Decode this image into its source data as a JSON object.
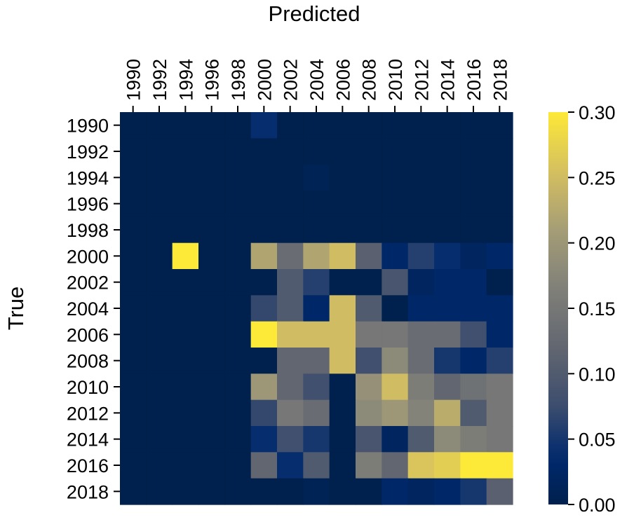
{
  "chart_data": {
    "type": "heatmap",
    "title": "Predicted",
    "xlabel": "Predicted",
    "ylabel": "True",
    "x_categories": [
      "1990",
      "1992",
      "1994",
      "1996",
      "1998",
      "2000",
      "2002",
      "2004",
      "2006",
      "2008",
      "2010",
      "2012",
      "2014",
      "2016",
      "2018"
    ],
    "y_categories": [
      "1990",
      "1992",
      "1994",
      "1996",
      "1998",
      "2000",
      "2002",
      "2004",
      "2006",
      "2008",
      "2010",
      "2012",
      "2014",
      "2016",
      "2018"
    ],
    "values": [
      [
        0.0,
        0.0,
        0.0,
        0.0,
        0.0,
        0.04,
        0.0,
        0.0,
        0.0,
        0.0,
        0.0,
        0.0,
        0.0,
        0.0,
        0.0
      ],
      [
        0.0,
        0.0,
        0.0,
        0.0,
        0.0,
        0.0,
        0.0,
        0.0,
        0.0,
        0.0,
        0.0,
        0.0,
        0.0,
        0.0,
        0.0
      ],
      [
        0.0,
        0.0,
        0.0,
        0.0,
        0.0,
        0.0,
        0.0,
        0.01,
        0.0,
        0.0,
        0.0,
        0.0,
        0.0,
        0.0,
        0.0
      ],
      [
        0.0,
        0.0,
        0.0,
        0.0,
        0.0,
        0.0,
        0.0,
        0.0,
        0.0,
        0.0,
        0.0,
        0.0,
        0.0,
        0.0,
        0.0
      ],
      [
        0.0,
        0.0,
        0.0,
        0.0,
        0.0,
        0.0,
        0.0,
        0.0,
        0.0,
        0.0,
        0.0,
        0.0,
        0.0,
        0.0,
        0.0
      ],
      [
        0.0,
        0.0,
        0.3,
        0.0,
        0.0,
        0.22,
        0.13,
        0.22,
        0.25,
        0.11,
        0.03,
        0.06,
        0.04,
        0.02,
        0.03
      ],
      [
        0.0,
        0.0,
        0.0,
        0.0,
        0.0,
        0.0,
        0.1,
        0.06,
        0.0,
        0.0,
        0.09,
        0.02,
        0.03,
        0.03,
        0.0
      ],
      [
        0.0,
        0.0,
        0.0,
        0.0,
        0.0,
        0.07,
        0.1,
        0.03,
        0.25,
        0.1,
        0.0,
        0.03,
        0.03,
        0.03,
        0.03
      ],
      [
        0.0,
        0.0,
        0.0,
        0.0,
        0.0,
        0.3,
        0.25,
        0.25,
        0.25,
        0.15,
        0.15,
        0.13,
        0.13,
        0.08,
        0.03
      ],
      [
        0.0,
        0.0,
        0.0,
        0.0,
        0.0,
        0.0,
        0.12,
        0.12,
        0.25,
        0.08,
        0.18,
        0.13,
        0.05,
        0.03,
        0.06
      ],
      [
        0.0,
        0.0,
        0.0,
        0.0,
        0.0,
        0.2,
        0.12,
        0.08,
        0.0,
        0.19,
        0.25,
        0.16,
        0.12,
        0.14,
        0.15
      ],
      [
        0.0,
        0.0,
        0.0,
        0.0,
        0.0,
        0.07,
        0.15,
        0.13,
        0.0,
        0.18,
        0.2,
        0.17,
        0.23,
        0.1,
        0.15
      ],
      [
        0.0,
        0.0,
        0.0,
        0.0,
        0.0,
        0.04,
        0.08,
        0.05,
        0.0,
        0.09,
        0.02,
        0.1,
        0.18,
        0.16,
        0.15
      ],
      [
        0.0,
        0.0,
        0.0,
        0.0,
        0.0,
        0.12,
        0.04,
        0.1,
        0.0,
        0.16,
        0.12,
        0.26,
        0.27,
        0.3,
        0.3
      ],
      [
        0.0,
        0.0,
        0.0,
        0.0,
        0.0,
        0.0,
        0.0,
        0.01,
        0.0,
        0.0,
        0.03,
        0.02,
        0.03,
        0.05,
        0.11
      ]
    ],
    "vmin": 0.0,
    "vmax": 0.3,
    "colormap": "cividis",
    "colorbar_ticks": [
      "0.00",
      "0.05",
      "0.10",
      "0.15",
      "0.20",
      "0.25",
      "0.30"
    ],
    "x_axis_position": "top",
    "grid": false
  }
}
